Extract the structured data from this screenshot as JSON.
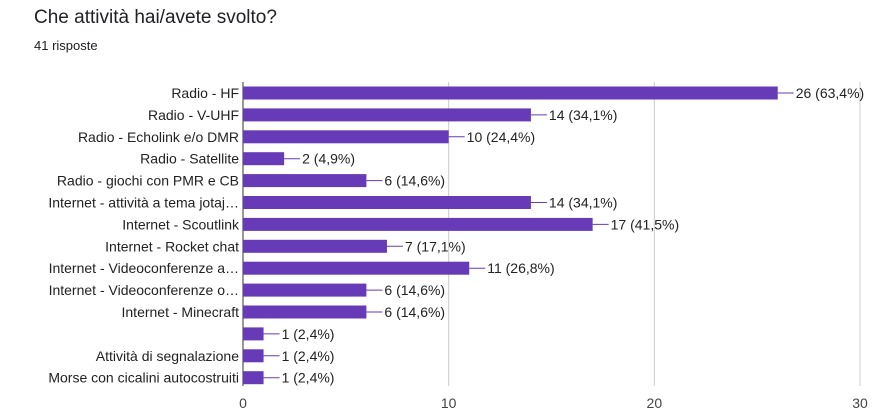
{
  "header": {
    "question": "Che attività hai/avete svolto?",
    "responses": "41 risposte"
  },
  "chart_data": {
    "type": "bar",
    "orientation": "horizontal",
    "categories": [
      "Radio - HF",
      "Radio - V-UHF",
      "Radio - Echolink e/o DMR",
      "Radio - Satellite",
      "Radio - giochi con PMR e CB",
      "Internet - attività a tema jotaj…",
      "Internet - Scoutlink",
      "Internet - Rocket chat",
      "Internet - Videoconferenze a…",
      "Internet - Videoconferenze o…",
      "Internet - Minecraft",
      "",
      "Attività di segnalazione",
      "Morse con cicalini autocostruiti"
    ],
    "values": [
      26,
      14,
      10,
      2,
      6,
      14,
      17,
      7,
      11,
      6,
      6,
      1,
      1,
      1
    ],
    "value_labels": [
      "26 (63,4%)",
      "14 (34,1%)",
      "10 (24,4%)",
      "2 (4,9%)",
      "6 (14,6%)",
      "14 (34,1%)",
      "17 (41,5%)",
      "7 (17,1%)",
      "11 (26,8%)",
      "6 (14,6%)",
      "6 (14,6%)",
      "1 (2,4%)",
      "1 (2,4%)",
      "1 (2,4%)"
    ],
    "xlim": [
      0,
      30
    ],
    "xticks": [
      0,
      10,
      20,
      30
    ],
    "grid": true,
    "colors": {
      "bar": "#673ab7",
      "grid": "#cccccc",
      "axis": "#333333",
      "leader": "#673ab7"
    }
  }
}
